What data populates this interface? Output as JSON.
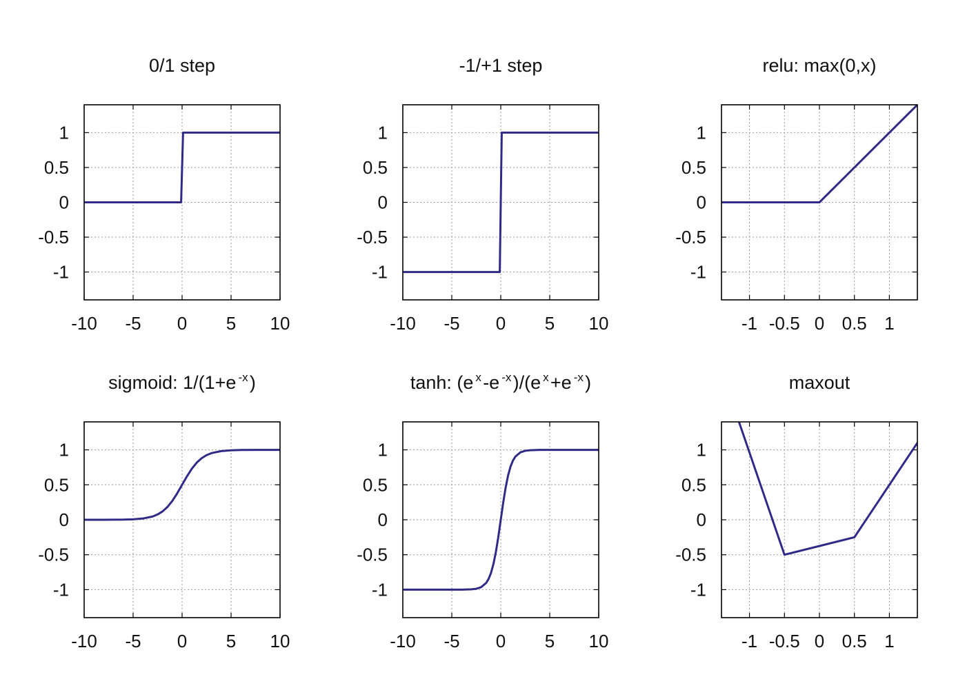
{
  "chart_data": [
    {
      "type": "line",
      "title": "0/1 step",
      "title_parts": [
        {
          "text": "0/1 step"
        }
      ],
      "xlim": [
        -10,
        10
      ],
      "ylim": [
        -1.4,
        1.4
      ],
      "xticks": [
        -10,
        -5,
        0,
        5,
        10
      ],
      "xtick_labels": [
        "-10",
        "-5",
        "0",
        "5",
        "10"
      ],
      "yticks": [
        1,
        0.5,
        0,
        -0.5,
        -1
      ],
      "ytick_labels": [
        "1",
        "0.5",
        "0",
        "-0.5",
        "-1"
      ],
      "grid": true,
      "series": [
        {
          "x": [
            -10,
            -0.1,
            0,
            0.1,
            10
          ],
          "y": [
            0,
            0,
            0.5,
            1,
            1
          ]
        }
      ]
    },
    {
      "type": "line",
      "title": "-1/+1 step",
      "title_parts": [
        {
          "text": "-1/+1 step"
        }
      ],
      "xlim": [
        -10,
        10
      ],
      "ylim": [
        -1.4,
        1.4
      ],
      "xticks": [
        -10,
        -5,
        0,
        5,
        10
      ],
      "xtick_labels": [
        "-10",
        "-5",
        "0",
        "5",
        "10"
      ],
      "yticks": [
        1,
        0.5,
        0,
        -0.5,
        -1
      ],
      "ytick_labels": [
        "1",
        "0.5",
        "0",
        "-0.5",
        "-1"
      ],
      "grid": true,
      "series": [
        {
          "x": [
            -10,
            -0.1,
            0,
            0.1,
            10
          ],
          "y": [
            -1,
            -1,
            0,
            1,
            1
          ]
        }
      ]
    },
    {
      "type": "line",
      "title": "relu: max(0,x)",
      "title_parts": [
        {
          "text": "relu: max(0,x)"
        }
      ],
      "xlim": [
        -1.4,
        1.4
      ],
      "ylim": [
        -1.4,
        1.4
      ],
      "xticks": [
        -1,
        -0.5,
        0,
        0.5,
        1
      ],
      "xtick_labels": [
        "-1",
        "-0.5",
        "0",
        "0.5",
        "1"
      ],
      "yticks": [
        1,
        0.5,
        0,
        -0.5,
        -1
      ],
      "ytick_labels": [
        "1",
        "0.5",
        "0",
        "-0.5",
        "-1"
      ],
      "grid": true,
      "series": [
        {
          "x": [
            -1.4,
            0,
            1.4
          ],
          "y": [
            0,
            0,
            1.4
          ]
        }
      ]
    },
    {
      "type": "line",
      "title": "sigmoid: 1/(1+e-x)",
      "title_parts": [
        {
          "text": "sigmoid: 1/(1+e"
        },
        {
          "text": "-x",
          "sup": true
        },
        {
          "text": ")"
        }
      ],
      "xlim": [
        -10,
        10
      ],
      "ylim": [
        -1.4,
        1.4
      ],
      "xticks": [
        -10,
        -5,
        0,
        5,
        10
      ],
      "xtick_labels": [
        "-10",
        "-5",
        "0",
        "5",
        "10"
      ],
      "yticks": [
        1,
        0.5,
        0,
        -0.5,
        -1
      ],
      "ytick_labels": [
        "1",
        "0.5",
        "0",
        "-0.5",
        "-1"
      ],
      "grid": true,
      "series": [
        {
          "x": [
            -10,
            -8,
            -6,
            -5,
            -4,
            -3,
            -2.5,
            -2,
            -1.5,
            -1,
            -0.5,
            0,
            0.5,
            1,
            1.5,
            2,
            2.5,
            3,
            4,
            5,
            6,
            8,
            10
          ],
          "y": [
            0.0,
            0.0003,
            0.0025,
            0.0067,
            0.018,
            0.047,
            0.076,
            0.119,
            0.182,
            0.269,
            0.378,
            0.5,
            0.622,
            0.731,
            0.818,
            0.881,
            0.924,
            0.953,
            0.982,
            0.993,
            0.998,
            0.9997,
            1.0
          ]
        }
      ]
    },
    {
      "type": "line",
      "title": "tanh: (ex-e-x)/(ex+e-x)",
      "title_parts": [
        {
          "text": "tanh: (e"
        },
        {
          "text": "x",
          "sup": true
        },
        {
          "text": "-e"
        },
        {
          "text": "-x",
          "sup": true
        },
        {
          "text": ")/(e"
        },
        {
          "text": "x",
          "sup": true
        },
        {
          "text": "+e"
        },
        {
          "text": "-x",
          "sup": true
        },
        {
          "text": ")"
        }
      ],
      "xlim": [
        -10,
        10
      ],
      "ylim": [
        -1.4,
        1.4
      ],
      "xticks": [
        -10,
        -5,
        0,
        5,
        10
      ],
      "xtick_labels": [
        "-10",
        "-5",
        "0",
        "5",
        "10"
      ],
      "yticks": [
        1,
        0.5,
        0,
        -0.5,
        -1
      ],
      "ytick_labels": [
        "1",
        "0.5",
        "0",
        "-0.5",
        "-1"
      ],
      "grid": true,
      "series": [
        {
          "x": [
            -10,
            -4,
            -3,
            -2.5,
            -2,
            -1.5,
            -1.25,
            -1,
            -0.75,
            -0.5,
            -0.25,
            0,
            0.25,
            0.5,
            0.75,
            1,
            1.25,
            1.5,
            2,
            2.5,
            3,
            4,
            10
          ],
          "y": [
            -1,
            -0.999,
            -0.995,
            -0.987,
            -0.964,
            -0.905,
            -0.848,
            -0.762,
            -0.635,
            -0.462,
            -0.245,
            0,
            0.245,
            0.462,
            0.635,
            0.762,
            0.848,
            0.905,
            0.964,
            0.987,
            0.995,
            0.999,
            1
          ]
        }
      ]
    },
    {
      "type": "line",
      "title": "maxout",
      "title_parts": [
        {
          "text": "maxout"
        }
      ],
      "xlim": [
        -1.4,
        1.4
      ],
      "ylim": [
        -1.4,
        1.4
      ],
      "xticks": [
        -1,
        -0.5,
        0,
        0.5,
        1
      ],
      "xtick_labels": [
        "-1",
        "-0.5",
        "0",
        "0.5",
        "1"
      ],
      "yticks": [
        1,
        0.5,
        0,
        -0.5,
        -1
      ],
      "ytick_labels": [
        "1",
        "0.5",
        "0",
        "-0.5",
        "-1"
      ],
      "grid": true,
      "series": [
        {
          "x": [
            -1.15,
            -0.5,
            0.5,
            1.4
          ],
          "y": [
            1.4,
            -0.5,
            -0.25,
            1.1
          ]
        }
      ]
    }
  ],
  "colors": {
    "series": "#2e2a86",
    "frame": "#000000",
    "grid": "#9a9a9a",
    "text": "#111111",
    "background": "#ffffff"
  }
}
